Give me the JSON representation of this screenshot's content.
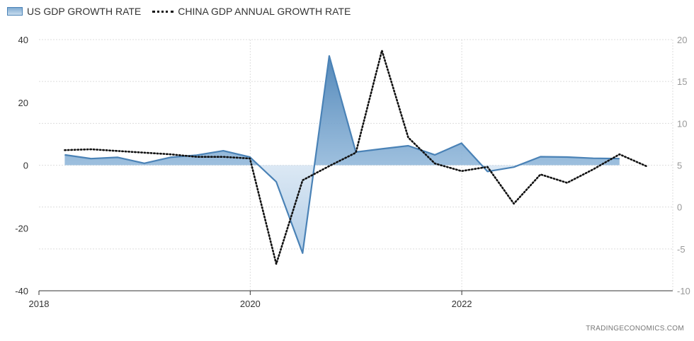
{
  "chart_data": {
    "type": "line",
    "legend_placement": "top-left",
    "grid": true,
    "x_axis": {
      "type": "date",
      "range": [
        "2018-01-01",
        "2023-12-31"
      ],
      "tick_labels": [
        "2018",
        "2020",
        "2022"
      ]
    },
    "y_left": {
      "range": [
        -40,
        40
      ],
      "ticks": [
        40,
        20,
        0,
        -20,
        -40
      ]
    },
    "y_right": {
      "range": [
        -10,
        20
      ],
      "ticks": [
        20,
        15,
        10,
        5,
        0,
        -5,
        -10
      ]
    },
    "series": [
      {
        "name": "US GDP GROWTH RATE",
        "axis": "left",
        "style": "area",
        "color": "#4a82b6",
        "x": [
          "2018-03-31",
          "2018-06-30",
          "2018-09-30",
          "2018-12-31",
          "2019-03-31",
          "2019-06-30",
          "2019-09-30",
          "2019-12-31",
          "2020-03-31",
          "2020-06-30",
          "2020-09-30",
          "2020-12-31",
          "2021-03-31",
          "2021-06-30",
          "2021-09-30",
          "2021-12-31",
          "2022-03-31",
          "2022-06-30",
          "2022-09-30",
          "2022-12-31",
          "2023-03-31",
          "2023-06-30"
        ],
        "values": [
          3.3,
          2.1,
          2.5,
          0.6,
          2.5,
          3.2,
          4.6,
          2.6,
          -5.3,
          -28.0,
          34.8,
          4.2,
          5.2,
          6.2,
          3.3,
          7.0,
          -2.0,
          -0.6,
          2.7,
          2.6,
          2.2,
          2.1
        ]
      },
      {
        "name": "CHINA GDP ANNUAL GROWTH RATE",
        "axis": "right",
        "style": "dotted-line",
        "color": "#111111",
        "x": [
          "2018-03-31",
          "2018-06-30",
          "2018-09-30",
          "2018-12-31",
          "2019-03-31",
          "2019-06-30",
          "2019-09-30",
          "2019-12-31",
          "2020-03-31",
          "2020-06-30",
          "2020-09-30",
          "2020-12-31",
          "2021-03-31",
          "2021-06-30",
          "2021-09-30",
          "2021-12-31",
          "2022-03-31",
          "2022-06-30",
          "2022-09-30",
          "2022-12-31",
          "2023-03-31",
          "2023-06-30",
          "2023-09-30"
        ],
        "values": [
          6.8,
          6.9,
          6.7,
          6.5,
          6.3,
          6.0,
          6.0,
          5.8,
          -6.8,
          3.2,
          4.9,
          6.5,
          18.7,
          8.3,
          5.2,
          4.3,
          4.8,
          0.4,
          3.9,
          2.9,
          4.5,
          6.3,
          4.9
        ]
      }
    ]
  },
  "credit": "TRADINGECONOMICS.COM"
}
